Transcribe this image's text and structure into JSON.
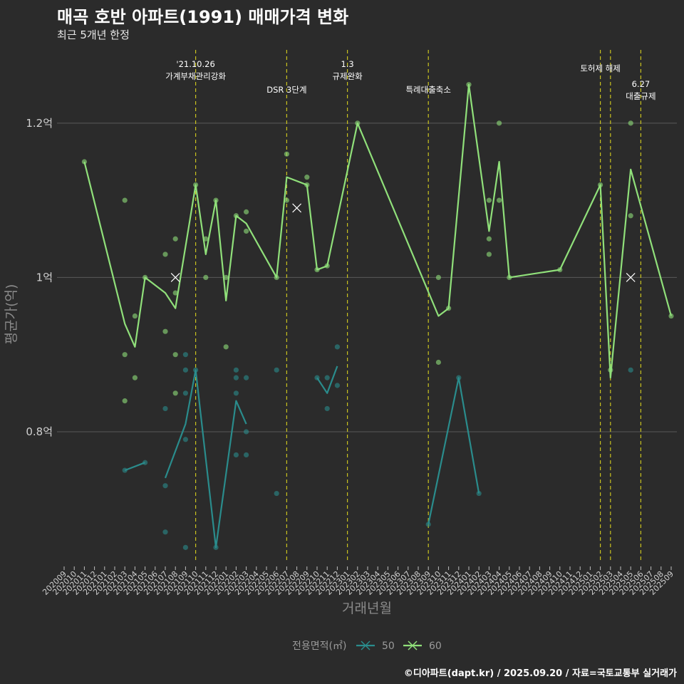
{
  "title": "매곡 호반 아파트(1991) 매매가격 변화",
  "subtitle": "최근 5개년 한정",
  "caption": "©디아파트(dapt.kr) / 2025.09.20 / 자료=국토교통부 실거래가",
  "colors": {
    "s50": "#2a8c8c",
    "s60": "#90e07a",
    "vline": "#c9c21f",
    "grid": "#5a5a5a",
    "bg": "#2b2b2b"
  },
  "chart_data": {
    "type": "line",
    "title": "매곡 호반 아파트(1991) 매매가격 변화",
    "xlabel": "거래년월",
    "ylabel": "평균가(억)",
    "ylim": [
      0.63,
      1.295
    ],
    "yticks": [
      {
        "v": 0.8,
        "label": "0.8억"
      },
      {
        "v": 1.0,
        "label": "1억"
      },
      {
        "v": 1.2,
        "label": "1.2억"
      }
    ],
    "categories": [
      "202009",
      "202010",
      "202011",
      "202012",
      "202101",
      "202102",
      "202103",
      "202104",
      "202105",
      "202106",
      "202107",
      "202108",
      "202109",
      "202110",
      "202111",
      "202112",
      "202201",
      "202202",
      "202203",
      "202204",
      "202205",
      "202206",
      "202207",
      "202208",
      "202209",
      "202210",
      "202211",
      "202212",
      "202301",
      "202302",
      "202303",
      "202304",
      "202305",
      "202306",
      "202307",
      "202308",
      "202309",
      "202310",
      "202311",
      "202312",
      "202401",
      "202402",
      "202403",
      "202404",
      "202405",
      "202406",
      "202407",
      "202408",
      "202409",
      "202410",
      "202411",
      "202412",
      "202501",
      "202502",
      "202503",
      "202504",
      "202505",
      "202506",
      "202507",
      "202508",
      "202509"
    ],
    "series": [
      {
        "name": "50",
        "segments": [
          [
            [
              "202103",
              0.75
            ],
            [
              "202105",
              0.76
            ]
          ],
          [
            [
              "202107",
              0.74
            ],
            [
              "202109",
              0.81
            ],
            [
              "202110",
              0.88
            ],
            [
              "202112",
              0.65
            ],
            [
              "202202",
              0.84
            ],
            [
              "202203",
              0.81
            ]
          ],
          [
            [
              "202210",
              0.87
            ],
            [
              "202211",
              0.85
            ],
            [
              "202212",
              0.885
            ]
          ],
          [
            [
              "202309",
              0.68
            ],
            [
              "202312",
              0.87
            ],
            [
              "202402",
              0.72
            ]
          ]
        ],
        "points": [
          [
            "202103",
            0.75
          ],
          [
            "202105",
            0.76
          ],
          [
            "202107",
            0.83
          ],
          [
            "202107",
            0.73
          ],
          [
            "202107",
            0.67
          ],
          [
            "202109",
            0.9
          ],
          [
            "202109",
            0.88
          ],
          [
            "202109",
            0.85
          ],
          [
            "202109",
            0.79
          ],
          [
            "202109",
            0.65
          ],
          [
            "202110",
            0.88
          ],
          [
            "202112",
            0.65
          ],
          [
            "202202",
            0.88
          ],
          [
            "202202",
            0.87
          ],
          [
            "202202",
            0.85
          ],
          [
            "202202",
            0.77
          ],
          [
            "202203",
            0.87
          ],
          [
            "202203",
            0.8
          ],
          [
            "202203",
            0.77
          ],
          [
            "202206",
            0.88
          ],
          [
            "202206",
            0.72
          ],
          [
            "202210",
            0.87
          ],
          [
            "202211",
            0.87
          ],
          [
            "202211",
            0.83
          ],
          [
            "202212",
            0.91
          ],
          [
            "202212",
            0.86
          ],
          [
            "202309",
            0.68
          ],
          [
            "202312",
            0.87
          ],
          [
            "202402",
            0.72
          ],
          [
            "202505",
            0.88
          ]
        ],
        "markers": [
          [
            "202208",
            1.09
          ],
          [
            "202505",
            1.0
          ]
        ]
      },
      {
        "name": "60",
        "segments": [
          [
            [
              "202011",
              1.15
            ],
            [
              "202103",
              0.94
            ],
            [
              "202104",
              0.91
            ],
            [
              "202105",
              1.0
            ],
            [
              "202107",
              0.98
            ],
            [
              "202108",
              0.96
            ],
            [
              "202110",
              1.12
            ],
            [
              "202111",
              1.03
            ],
            [
              "202112",
              1.1
            ],
            [
              "202201",
              0.97
            ],
            [
              "202202",
              1.08
            ],
            [
              "202203",
              1.07
            ],
            [
              "202206",
              1.0
            ],
            [
              "202207",
              1.13
            ],
            [
              "202209",
              1.12
            ],
            [
              "202210",
              1.01
            ],
            [
              "202211",
              1.015
            ],
            [
              "202302",
              1.2
            ],
            [
              "202310",
              0.95
            ],
            [
              "202311",
              0.96
            ],
            [
              "202401",
              1.25
            ],
            [
              "202403",
              1.06
            ],
            [
              "202404",
              1.15
            ],
            [
              "202405",
              1.0
            ],
            [
              "202410",
              1.01
            ],
            [
              "202502",
              1.12
            ],
            [
              "202503",
              0.87
            ],
            [
              "202505",
              1.14
            ],
            [
              "202509",
              0.95
            ]
          ]
        ],
        "points": [
          [
            "202011",
            1.15
          ],
          [
            "202103",
            1.1
          ],
          [
            "202103",
            0.9
          ],
          [
            "202103",
            0.84
          ],
          [
            "202104",
            0.95
          ],
          [
            "202104",
            0.87
          ],
          [
            "202105",
            1.0
          ],
          [
            "202107",
            1.03
          ],
          [
            "202107",
            0.93
          ],
          [
            "202108",
            1.05
          ],
          [
            "202108",
            0.98
          ],
          [
            "202108",
            0.9
          ],
          [
            "202108",
            0.85
          ],
          [
            "202110",
            1.12
          ],
          [
            "202111",
            1.05
          ],
          [
            "202111",
            1.0
          ],
          [
            "202112",
            1.1
          ],
          [
            "202201",
            1.0
          ],
          [
            "202201",
            0.91
          ],
          [
            "202202",
            1.08
          ],
          [
            "202203",
            1.085
          ],
          [
            "202203",
            1.06
          ],
          [
            "202206",
            1.0
          ],
          [
            "202207",
            1.16
          ],
          [
            "202207",
            1.1
          ],
          [
            "202209",
            1.13
          ],
          [
            "202209",
            1.12
          ],
          [
            "202210",
            1.01
          ],
          [
            "202211",
            1.015
          ],
          [
            "202302",
            1.2
          ],
          [
            "202310",
            1.0
          ],
          [
            "202310",
            0.89
          ],
          [
            "202311",
            0.96
          ],
          [
            "202401",
            1.25
          ],
          [
            "202403",
            1.1
          ],
          [
            "202403",
            1.05
          ],
          [
            "202403",
            1.03
          ],
          [
            "202404",
            1.2
          ],
          [
            "202404",
            1.1
          ],
          [
            "202405",
            1.0
          ],
          [
            "202410",
            1.01
          ],
          [
            "202502",
            1.12
          ],
          [
            "202503",
            0.88
          ],
          [
            "202505",
            1.2
          ],
          [
            "202505",
            1.08
          ],
          [
            "202509",
            0.95
          ]
        ],
        "markers": [
          [
            "202108",
            1.0
          ]
        ]
      }
    ],
    "annotations": [
      {
        "month": "202110",
        "lines": [
          "'21.10.26",
          "가계부채관리강화"
        ],
        "level": "high"
      },
      {
        "month": "202207",
        "lines": [
          "DSR 3단계"
        ],
        "level": "mid"
      },
      {
        "month": "202301",
        "lines": [
          "1.3",
          "규제완화"
        ],
        "level": "high"
      },
      {
        "month": "202309",
        "lines": [
          "특례대출축소"
        ],
        "level": "mid"
      },
      {
        "month": "202502",
        "lines": [
          "토허제 해제"
        ],
        "level": "top"
      },
      {
        "month": "202503",
        "lines": [],
        "level": "none"
      },
      {
        "month": "202506",
        "lines": [
          "6.27",
          "대출규제"
        ],
        "level": "low"
      }
    ],
    "legend": {
      "title": "전용면적(㎡)",
      "items": [
        "50",
        "60"
      ],
      "position": "bottom"
    }
  }
}
